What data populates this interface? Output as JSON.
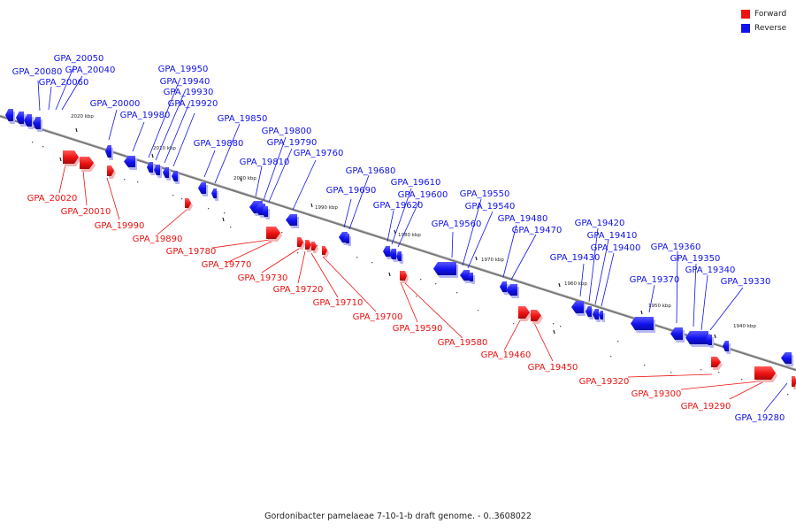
{
  "caption": "Gordonibacter pamelaeae 7-10-1-b draft genome. - 0..3608022",
  "legend": [
    {
      "label": "Forward",
      "color": "#ee1111"
    },
    {
      "label": "Reverse",
      "color": "#1111ee"
    }
  ],
  "colors": {
    "forward": "#ee1111",
    "reverse": "#1111ee",
    "backbone": "#777777"
  },
  "ticks": [
    "2020 kbp",
    "2010 kbp",
    "2000 kbp",
    "1990 kbp",
    "1980 kbp",
    "1970 kbp",
    "1960 kbp",
    "1950 kbp",
    "1940 kbp"
  ],
  "genes": [
    {
      "name": "GPA_20080",
      "strand": "reverse"
    },
    {
      "name": "GPA_20060",
      "strand": "reverse"
    },
    {
      "name": "GPA_20050",
      "strand": "reverse"
    },
    {
      "name": "GPA_20040",
      "strand": "reverse"
    },
    {
      "name": "GPA_20000",
      "strand": "reverse"
    },
    {
      "name": "GPA_19980",
      "strand": "reverse"
    },
    {
      "name": "GPA_19950",
      "strand": "reverse"
    },
    {
      "name": "GPA_19940",
      "strand": "reverse"
    },
    {
      "name": "GPA_19930",
      "strand": "reverse"
    },
    {
      "name": "GPA_19920",
      "strand": "reverse"
    },
    {
      "name": "GPA_19880",
      "strand": "reverse"
    },
    {
      "name": "GPA_19850",
      "strand": "reverse"
    },
    {
      "name": "GPA_19810",
      "strand": "reverse"
    },
    {
      "name": "GPA_19800",
      "strand": "reverse"
    },
    {
      "name": "GPA_19790",
      "strand": "reverse"
    },
    {
      "name": "GPA_19760",
      "strand": "reverse"
    },
    {
      "name": "GPA_19690",
      "strand": "reverse"
    },
    {
      "name": "GPA_19680",
      "strand": "reverse"
    },
    {
      "name": "GPA_19620",
      "strand": "reverse"
    },
    {
      "name": "GPA_19610",
      "strand": "reverse"
    },
    {
      "name": "GPA_19600",
      "strand": "reverse"
    },
    {
      "name": "GPA_19560",
      "strand": "reverse"
    },
    {
      "name": "GPA_19550",
      "strand": "reverse"
    },
    {
      "name": "GPA_19540",
      "strand": "reverse"
    },
    {
      "name": "GPA_19480",
      "strand": "reverse"
    },
    {
      "name": "GPA_19470",
      "strand": "reverse"
    },
    {
      "name": "GPA_19430",
      "strand": "reverse"
    },
    {
      "name": "GPA_19420",
      "strand": "reverse"
    },
    {
      "name": "GPA_19410",
      "strand": "reverse"
    },
    {
      "name": "GPA_19400",
      "strand": "reverse"
    },
    {
      "name": "GPA_19370",
      "strand": "reverse"
    },
    {
      "name": "GPA_19360",
      "strand": "reverse"
    },
    {
      "name": "GPA_19350",
      "strand": "reverse"
    },
    {
      "name": "GPA_19340",
      "strand": "reverse"
    },
    {
      "name": "GPA_19330",
      "strand": "reverse"
    },
    {
      "name": "GPA_19280",
      "strand": "reverse"
    },
    {
      "name": "GPA_20020",
      "strand": "forward"
    },
    {
      "name": "GPA_20010",
      "strand": "forward"
    },
    {
      "name": "GPA_19990",
      "strand": "forward"
    },
    {
      "name": "GPA_19890",
      "strand": "forward"
    },
    {
      "name": "GPA_19780",
      "strand": "forward"
    },
    {
      "name": "GPA_19770",
      "strand": "forward"
    },
    {
      "name": "GPA_19730",
      "strand": "forward"
    },
    {
      "name": "GPA_19720",
      "strand": "forward"
    },
    {
      "name": "GPA_19710",
      "strand": "forward"
    },
    {
      "name": "GPA_19700",
      "strand": "forward"
    },
    {
      "name": "GPA_19590",
      "strand": "forward"
    },
    {
      "name": "GPA_19580",
      "strand": "forward"
    },
    {
      "name": "GPA_19460",
      "strand": "forward"
    },
    {
      "name": "GPA_19450",
      "strand": "forward"
    },
    {
      "name": "GPA_19320",
      "strand": "forward"
    },
    {
      "name": "GPA_19300",
      "strand": "forward"
    },
    {
      "name": "GPA_19290",
      "strand": "forward"
    }
  ]
}
